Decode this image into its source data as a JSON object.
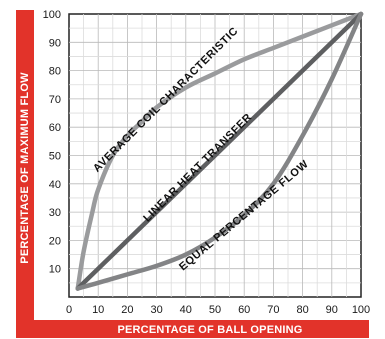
{
  "chart_data": {
    "type": "line",
    "xlabel": "PERCENTAGE OF BALL OPENING",
    "ylabel": "PERCENTAGE OF MAXIMUM FLOW",
    "xlim": [
      0,
      100
    ],
    "ylim": [
      0,
      100
    ],
    "xticks": [
      "0",
      "10",
      "20",
      "30",
      "40",
      "50",
      "60",
      "70",
      "80",
      "90",
      "100"
    ],
    "yticks": [
      "10",
      "20",
      "30",
      "40",
      "50",
      "60",
      "70",
      "80",
      "90",
      "100"
    ],
    "grid": true,
    "series": [
      {
        "name": "AVERAGE COIL CHARACTERISTIC",
        "color": "#9a9b9d",
        "x": [
          3,
          5,
          8,
          10,
          15,
          20,
          25,
          30,
          40,
          50,
          60,
          70,
          80,
          90,
          100
        ],
        "y": [
          3,
          16,
          30,
          38,
          50,
          57,
          62,
          67,
          74,
          79,
          84,
          88,
          92,
          96,
          100
        ]
      },
      {
        "name": "LINEAR HEAT TRANSFER",
        "color": "#5e5f61",
        "x": [
          3,
          100
        ],
        "y": [
          3,
          100
        ]
      },
      {
        "name": "EQUAL PERCENTAGE FLOW",
        "color": "#838486",
        "x": [
          3,
          10,
          20,
          30,
          40,
          50,
          60,
          70,
          80,
          90,
          100
        ],
        "y": [
          3,
          5,
          8,
          11,
          15,
          21,
          29,
          40,
          57,
          77,
          100
        ]
      }
    ]
  }
}
